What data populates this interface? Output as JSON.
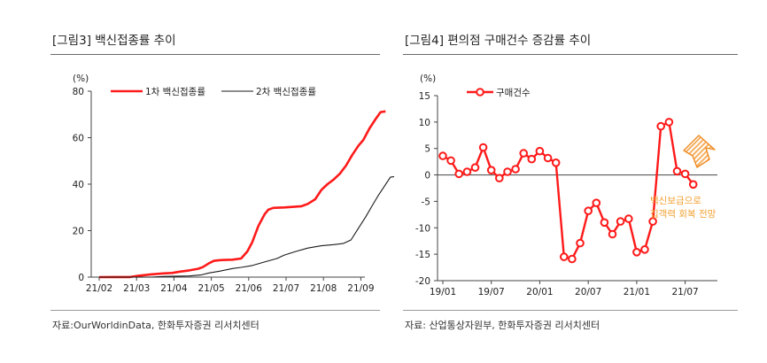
{
  "left": {
    "figure_title": "[그림3]   백신접종률 추이",
    "source": "자료:OurWorldinData, 한화투자증권 리서치센터"
  },
  "right": {
    "figure_title": "[그림4]   편의점 구매건수 증감률 추이",
    "source": "자료: 산업통상자원부, 한화투자증권 리서치센터"
  },
  "chart_data": [
    {
      "type": "line",
      "ylabel": "(%)",
      "ylim": [
        0,
        80
      ],
      "yticks": [
        "0",
        "20",
        "40",
        "60",
        "80"
      ],
      "xticks": [
        "21/02",
        "21/03",
        "21/04",
        "21/05",
        "21/06",
        "21/07",
        "21/08",
        "21/09"
      ],
      "legend_position": "top",
      "series": [
        {
          "name": "1차 백신접종률",
          "color": "#ff1a1a",
          "points": [
            [
              "2021-02-01",
              0
            ],
            [
              "2021-02-26",
              0.05
            ],
            [
              "2021-03-05",
              0.6
            ],
            [
              "2021-03-15",
              1.2
            ],
            [
              "2021-03-25",
              1.6
            ],
            [
              "2021-04-01",
              1.8
            ],
            [
              "2021-04-08",
              2.4
            ],
            [
              "2021-04-15",
              2.9
            ],
            [
              "2021-04-22",
              3.6
            ],
            [
              "2021-04-26",
              4.3
            ],
            [
              "2021-05-01",
              6.0
            ],
            [
              "2021-05-05",
              7.0
            ],
            [
              "2021-05-10",
              7.3
            ],
            [
              "2021-05-20",
              7.5
            ],
            [
              "2021-05-27",
              8.0
            ],
            [
              "2021-06-01",
              11.0
            ],
            [
              "2021-06-05",
              15.0
            ],
            [
              "2021-06-10",
              22.0
            ],
            [
              "2021-06-15",
              27.0
            ],
            [
              "2021-06-18",
              29.0
            ],
            [
              "2021-06-22",
              29.8
            ],
            [
              "2021-07-01",
              30.0
            ],
            [
              "2021-07-15",
              30.5
            ],
            [
              "2021-07-20",
              31.5
            ],
            [
              "2021-07-26",
              33.5
            ],
            [
              "2021-07-31",
              37.5
            ],
            [
              "2021-08-05",
              40.0
            ],
            [
              "2021-08-10",
              42.0
            ],
            [
              "2021-08-15",
              44.5
            ],
            [
              "2021-08-20",
              48.0
            ],
            [
              "2021-08-25",
              52.5
            ],
            [
              "2021-08-30",
              56.5
            ],
            [
              "2021-09-03",
              59.0
            ],
            [
              "2021-09-08",
              64.0
            ],
            [
              "2021-09-13",
              68.0
            ],
            [
              "2021-09-17",
              71.0
            ],
            [
              "2021-09-21",
              71.3
            ]
          ]
        },
        {
          "name": "2차 백신접종률",
          "color": "#1a1a1a",
          "points": [
            [
              "2021-02-01",
              0
            ],
            [
              "2021-03-15",
              0
            ],
            [
              "2021-03-26",
              0.3
            ],
            [
              "2021-04-15",
              0.5
            ],
            [
              "2021-04-25",
              1.0
            ],
            [
              "2021-05-01",
              1.8
            ],
            [
              "2021-05-10",
              2.6
            ],
            [
              "2021-05-20",
              3.7
            ],
            [
              "2021-05-27",
              4.2
            ],
            [
              "2021-06-05",
              5.0
            ],
            [
              "2021-06-15",
              6.5
            ],
            [
              "2021-06-25",
              8.0
            ],
            [
              "2021-07-01",
              9.5
            ],
            [
              "2021-07-10",
              11.0
            ],
            [
              "2021-07-20",
              12.5
            ],
            [
              "2021-07-31",
              13.5
            ],
            [
              "2021-08-10",
              14.0
            ],
            [
              "2021-08-18",
              14.5
            ],
            [
              "2021-08-24",
              16.0
            ],
            [
              "2021-08-30",
              21.0
            ],
            [
              "2021-09-05",
              26.0
            ],
            [
              "2021-09-10",
              30.5
            ],
            [
              "2021-09-15",
              35.0
            ],
            [
              "2021-09-20",
              39.0
            ],
            [
              "2021-09-25",
              43.0
            ],
            [
              "2021-09-28",
              43.2
            ]
          ]
        }
      ]
    },
    {
      "type": "line",
      "ylabel": "(%)",
      "ylim": [
        -20,
        15
      ],
      "yticks": [
        "-20",
        "-15",
        "-10",
        "-5",
        "0",
        "5",
        "10",
        "15"
      ],
      "xticks": [
        "19/01",
        "19/07",
        "20/01",
        "20/07",
        "21/01",
        "21/07"
      ],
      "legend_position": "top-left",
      "annotation": {
        "text_lines": [
          "백신보급으로",
          "집객력  회복  전망"
        ],
        "color": "#f0a030"
      },
      "series": [
        {
          "name": "구매건수",
          "color": "#ff1a1a",
          "x": [
            "2019-01",
            "2019-02",
            "2019-03",
            "2019-04",
            "2019-05",
            "2019-06",
            "2019-07",
            "2019-08",
            "2019-09",
            "2019-10",
            "2019-11",
            "2019-12",
            "2020-01",
            "2020-02",
            "2020-03",
            "2020-04",
            "2020-05",
            "2020-06",
            "2020-07",
            "2020-08",
            "2020-09",
            "2020-10",
            "2020-11",
            "2020-12",
            "2021-01",
            "2021-02",
            "2021-03",
            "2021-04",
            "2021-05",
            "2021-06",
            "2021-07",
            "2021-08",
            "2021-09",
            "2021-10"
          ],
          "values": [
            3.6,
            2.7,
            0.2,
            0.6,
            1.4,
            5.2,
            0.9,
            -0.6,
            0.6,
            1.1,
            4.1,
            3.0,
            4.5,
            3.2,
            2.3,
            -15.5,
            -15.9,
            -12.9,
            -6.8,
            -5.3,
            -9.0,
            -11.2,
            -8.8,
            -8.3,
            -14.6,
            -14.1,
            -8.8,
            9.2,
            10.0,
            0.7,
            0.2,
            -1.8,
            null,
            null
          ]
        }
      ]
    }
  ]
}
